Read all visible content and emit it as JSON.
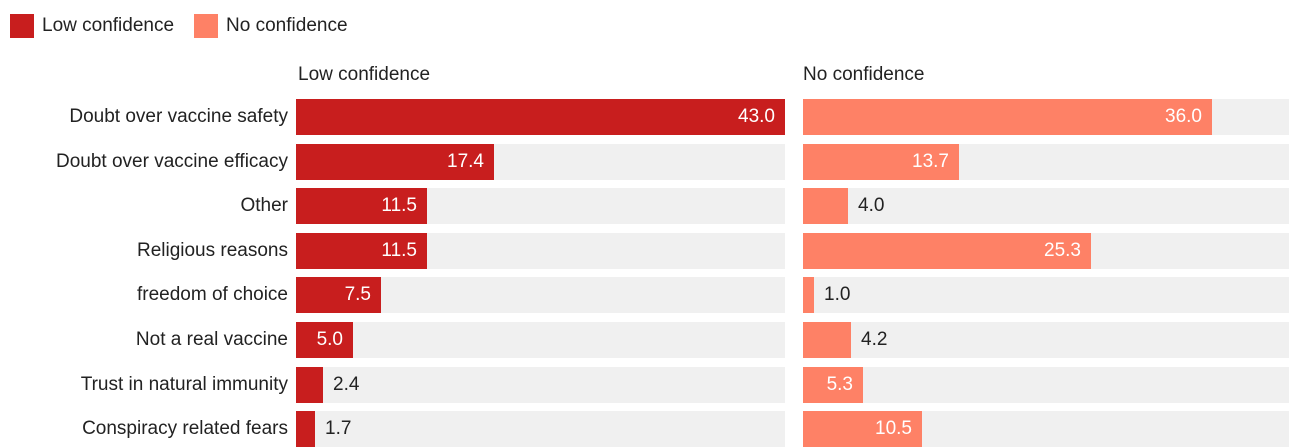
{
  "legend": [
    {
      "label": "Low confidence",
      "color": "#c81e1e"
    },
    {
      "label": "No confidence",
      "color": "#fe8166"
    }
  ],
  "chart_data": {
    "type": "bar",
    "orientation": "horizontal",
    "layout": "two panels side by side, one per series",
    "categories": [
      "Doubt over vaccine safety",
      "Doubt over vaccine efficacy",
      "Other",
      "Religious reasons",
      "freedom of choice",
      "Not a real vaccine",
      "Trust in natural immunity",
      "Conspiracy related fears"
    ],
    "series": [
      {
        "name": "Low confidence",
        "color": "#c81e1e",
        "values": [
          43.0,
          17.4,
          11.5,
          11.5,
          7.5,
          5.0,
          2.4,
          1.7
        ]
      },
      {
        "name": "No confidence",
        "color": "#fe8166",
        "values": [
          36.0,
          13.7,
          4.0,
          25.3,
          1.0,
          4.2,
          5.3,
          10.5
        ]
      }
    ],
    "xlim": [
      0,
      43
    ],
    "value_format": "one decimal",
    "legend_position": "top-left",
    "grid": false,
    "track_color": "#f0f0f0"
  }
}
